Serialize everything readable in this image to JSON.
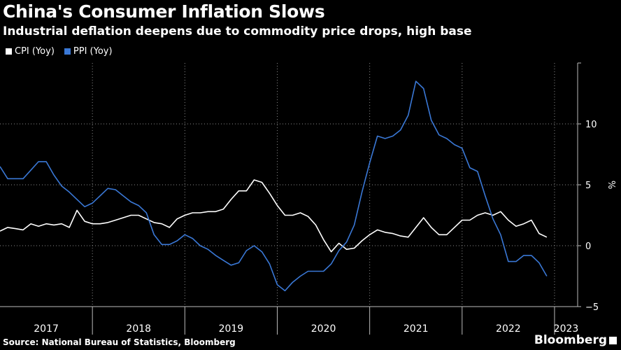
{
  "header": {
    "title": "China's Consumer Inflation Slows",
    "subtitle": "Industrial deflation deepens due to commodity price drops, high base"
  },
  "footer": {
    "source": "Source: National Bureau of Statistics, Bloomberg",
    "brand": "Bloomberg"
  },
  "colors": {
    "background": "#000000",
    "cpi": "#ffffff",
    "ppi": "#3a78d6",
    "grid": "#8a8a8a"
  },
  "chart_data": {
    "type": "line",
    "title": "China's Consumer Inflation Slows",
    "subtitle": "Industrial deflation deepens due to commodity price drops, high base",
    "ylabel": "%",
    "ylim": [
      -5,
      15
    ],
    "yticks": [
      -5,
      0,
      5,
      10
    ],
    "xlim": [
      "2017-01",
      "2023-04"
    ],
    "year_labels": [
      "2017",
      "2018",
      "2019",
      "2020",
      "2021",
      "2022",
      "2023"
    ],
    "grid": true,
    "legend": "top-left",
    "series": [
      {
        "name": "CPI (Yoy)",
        "color": "#ffffff",
        "points": [
          [
            "2017-01",
            1.2
          ],
          [
            "2017-02",
            1.5
          ],
          [
            "2017-03",
            1.4
          ],
          [
            "2017-04",
            1.3
          ],
          [
            "2017-05",
            1.8
          ],
          [
            "2017-06",
            1.6
          ],
          [
            "2017-07",
            1.8
          ],
          [
            "2017-08",
            1.7
          ],
          [
            "2017-09",
            1.8
          ],
          [
            "2017-10",
            1.5
          ],
          [
            "2017-11",
            2.9
          ],
          [
            "2017-12",
            2.0
          ],
          [
            "2018-01",
            1.8
          ],
          [
            "2018-02",
            1.8
          ],
          [
            "2018-03",
            1.9
          ],
          [
            "2018-04",
            2.1
          ],
          [
            "2018-05",
            2.3
          ],
          [
            "2018-06",
            2.5
          ],
          [
            "2018-07",
            2.5
          ],
          [
            "2018-08",
            2.2
          ],
          [
            "2018-09",
            1.9
          ],
          [
            "2018-10",
            1.8
          ],
          [
            "2018-11",
            1.5
          ],
          [
            "2018-12",
            2.2
          ],
          [
            "2019-01",
            2.5
          ],
          [
            "2019-02",
            2.7
          ],
          [
            "2019-03",
            2.7
          ],
          [
            "2019-04",
            2.8
          ],
          [
            "2019-05",
            2.8
          ],
          [
            "2019-06",
            3.0
          ],
          [
            "2019-07",
            3.8
          ],
          [
            "2019-08",
            4.5
          ],
          [
            "2019-09",
            4.5
          ],
          [
            "2019-10",
            5.4
          ],
          [
            "2019-11",
            5.2
          ],
          [
            "2019-12",
            4.3
          ],
          [
            "2020-01",
            3.3
          ],
          [
            "2020-02",
            2.5
          ],
          [
            "2020-03",
            2.5
          ],
          [
            "2020-04",
            2.7
          ],
          [
            "2020-05",
            2.4
          ],
          [
            "2020-06",
            1.7
          ],
          [
            "2020-07",
            0.5
          ],
          [
            "2020-08",
            -0.5
          ],
          [
            "2020-09",
            0.2
          ],
          [
            "2020-10",
            -0.3
          ],
          [
            "2020-11",
            -0.2
          ],
          [
            "2020-12",
            0.4
          ],
          [
            "2021-01",
            0.9
          ],
          [
            "2021-02",
            1.3
          ],
          [
            "2021-03",
            1.1
          ],
          [
            "2021-04",
            1.0
          ],
          [
            "2021-05",
            0.8
          ],
          [
            "2021-06",
            0.7
          ],
          [
            "2021-07",
            1.5
          ],
          [
            "2021-08",
            2.3
          ],
          [
            "2021-09",
            1.5
          ],
          [
            "2021-10",
            0.9
          ],
          [
            "2021-11",
            0.9
          ],
          [
            "2021-12",
            1.5
          ],
          [
            "2022-01",
            2.1
          ],
          [
            "2022-02",
            2.1
          ],
          [
            "2022-03",
            2.5
          ],
          [
            "2022-04",
            2.7
          ],
          [
            "2022-05",
            2.5
          ],
          [
            "2022-06",
            2.8
          ],
          [
            "2022-07",
            2.1
          ],
          [
            "2022-08",
            1.6
          ],
          [
            "2022-09",
            1.8
          ],
          [
            "2022-10",
            2.1
          ],
          [
            "2022-11",
            1.0
          ],
          [
            "2022-12",
            0.7
          ]
        ]
      },
      {
        "name": "PPI (Yoy)",
        "color": "#3a78d6",
        "points": [
          [
            "2017-01",
            6.5
          ],
          [
            "2017-02",
            5.5
          ],
          [
            "2017-03",
            5.5
          ],
          [
            "2017-04",
            5.5
          ],
          [
            "2017-05",
            6.2
          ],
          [
            "2017-06",
            6.9
          ],
          [
            "2017-07",
            6.9
          ],
          [
            "2017-08",
            5.8
          ],
          [
            "2017-09",
            4.9
          ],
          [
            "2017-10",
            4.4
          ],
          [
            "2017-11",
            3.8
          ],
          [
            "2017-12",
            3.2
          ],
          [
            "2018-01",
            3.5
          ],
          [
            "2018-02",
            4.1
          ],
          [
            "2018-03",
            4.7
          ],
          [
            "2018-04",
            4.6
          ],
          [
            "2018-05",
            4.1
          ],
          [
            "2018-06",
            3.6
          ],
          [
            "2018-07",
            3.3
          ],
          [
            "2018-08",
            2.7
          ],
          [
            "2018-09",
            0.9
          ],
          [
            "2018-10",
            0.1
          ],
          [
            "2018-11",
            0.1
          ],
          [
            "2018-12",
            0.4
          ],
          [
            "2019-01",
            0.9
          ],
          [
            "2019-02",
            0.6
          ],
          [
            "2019-03",
            0.0
          ],
          [
            "2019-04",
            -0.3
          ],
          [
            "2019-05",
            -0.8
          ],
          [
            "2019-06",
            -1.2
          ],
          [
            "2019-07",
            -1.6
          ],
          [
            "2019-08",
            -1.4
          ],
          [
            "2019-09",
            -0.4
          ],
          [
            "2019-10",
            0.0
          ],
          [
            "2019-11",
            -0.5
          ],
          [
            "2019-12",
            -1.5
          ],
          [
            "2020-01",
            -3.2
          ],
          [
            "2020-02",
            -3.7
          ],
          [
            "2020-03",
            -3.0
          ],
          [
            "2020-04",
            -2.5
          ],
          [
            "2020-05",
            -2.1
          ],
          [
            "2020-06",
            -2.1
          ],
          [
            "2020-07",
            -2.1
          ],
          [
            "2020-08",
            -1.5
          ],
          [
            "2020-09",
            -0.4
          ],
          [
            "2020-10",
            0.3
          ],
          [
            "2020-11",
            1.7
          ],
          [
            "2020-12",
            4.4
          ],
          [
            "2021-01",
            6.8
          ],
          [
            "2021-02",
            9.0
          ],
          [
            "2021-03",
            8.8
          ],
          [
            "2021-04",
            9.0
          ],
          [
            "2021-05",
            9.5
          ],
          [
            "2021-06",
            10.7
          ],
          [
            "2021-07",
            13.5
          ],
          [
            "2021-08",
            12.9
          ],
          [
            "2021-09",
            10.3
          ],
          [
            "2021-10",
            9.1
          ],
          [
            "2021-11",
            8.8
          ],
          [
            "2021-12",
            8.3
          ],
          [
            "2022-01",
            8.0
          ],
          [
            "2022-02",
            6.4
          ],
          [
            "2022-03",
            6.1
          ],
          [
            "2022-04",
            4.1
          ],
          [
            "2022-05",
            2.2
          ],
          [
            "2022-06",
            0.9
          ],
          [
            "2022-07",
            -1.3
          ],
          [
            "2022-08",
            -1.3
          ],
          [
            "2022-09",
            -0.8
          ],
          [
            "2022-10",
            -0.8
          ],
          [
            "2022-11",
            -1.4
          ],
          [
            "2022-12",
            -2.5
          ]
        ]
      }
    ]
  }
}
